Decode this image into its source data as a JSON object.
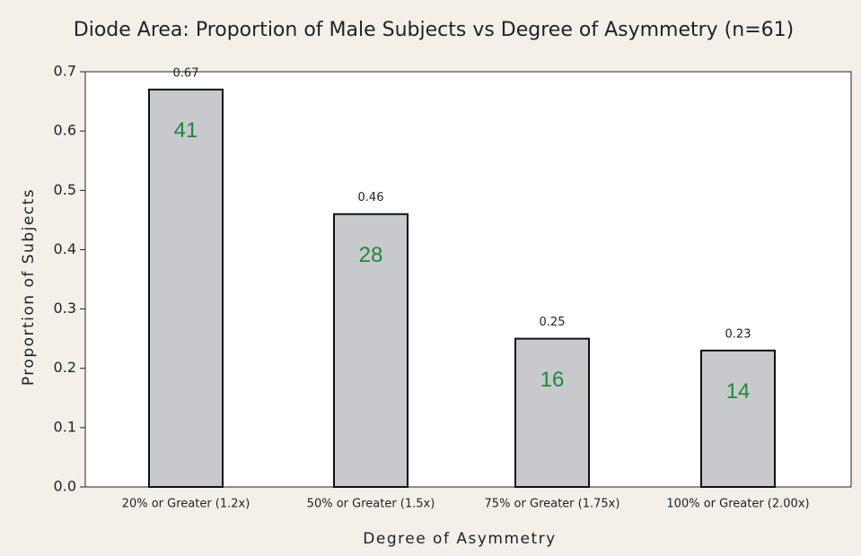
{
  "chart_data": {
    "type": "bar",
    "title": "Diode Area: Proportion of Male Subjects vs Degree of Asymmetry (n=61)",
    "x_label": "Degree of Asymmetry",
    "y_label": "Proportion of Subjects",
    "categories": [
      "20% or Greater (1.2x)",
      "50% or Greater (1.5x)",
      "75% or Greater (1.75x)",
      "100% or Greater (2.00x)"
    ],
    "values": [
      0.67,
      0.46,
      0.25,
      0.23
    ],
    "counts": [
      41,
      28,
      16,
      14
    ],
    "color": "#c8c9cc",
    "ylim": [
      0,
      0.7
    ],
    "yticks": [
      {
        "value": 0,
        "label": "0.0"
      },
      0.1,
      0.2,
      0.3,
      0.4,
      0.5,
      0.6,
      0.7
    ]
  }
}
